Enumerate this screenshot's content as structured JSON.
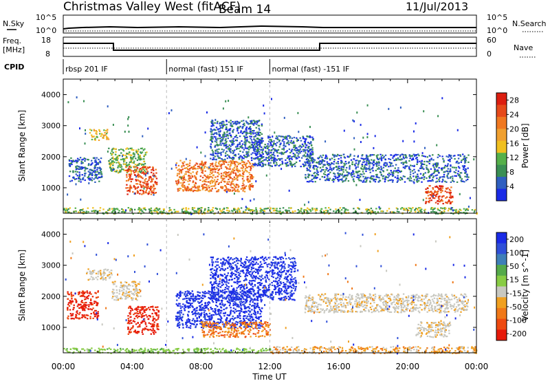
{
  "header": {
    "title": "Christmas Valley West (fitACF)",
    "beam": "Beam 14",
    "date": "11/Jul/2013"
  },
  "info_panels": {
    "nsky_label": "N.Sky",
    "nsky_ticks": [
      "10^5",
      "10^0"
    ],
    "nsky_right_ticks": [
      "10^5",
      "10^0"
    ],
    "nsearch_label": "N.Search",
    "freq_label_line1": "Freq.",
    "freq_label_line2": "[MHz]",
    "freq_ticks": [
      "18",
      "8"
    ],
    "freq_right_ticks": [
      "60",
      "0"
    ],
    "nave_label": "Nave",
    "cpid_label": "CPID",
    "cpid_segments": [
      {
        "label": "rbsp 201 IF",
        "start_hour": 0
      },
      {
        "label": "normal (fast) 151 IF",
        "start_hour": 6
      },
      {
        "label": "normal (fast) -151 IF",
        "start_hour": 12
      }
    ]
  },
  "colors": {
    "power": [
      "#1a2be6",
      "#2f5fc0",
      "#3a8f54",
      "#55b04a",
      "#f0c020",
      "#f0a030",
      "#f07820",
      "#e64a1a",
      "#dc1e10"
    ],
    "velocity_pos": [
      "#1a2be6",
      "#2f4fd8",
      "#3f7fb8",
      "#55aa4a",
      "#88cc44"
    ],
    "velocity_neg": [
      "#c8c8c0",
      "#f0a020",
      "#f07818",
      "#ee4a10",
      "#e61a0a"
    ]
  },
  "chart_data": [
    {
      "type": "heatmap",
      "title": "",
      "xlabel": "",
      "ylabel": "Slant Range [km]",
      "x_ticks": [
        "00:00",
        "04:00",
        "08:00",
        "12:00",
        "16:00",
        "20:00",
        "00:00"
      ],
      "y_ticks": [
        "1000",
        "2000",
        "3000",
        "4000"
      ],
      "xlim_hours": [
        0,
        24
      ],
      "ylim_km": [
        180,
        4500
      ],
      "colorbar_label": "Power [dB]",
      "colorbar_ticks": [
        "4",
        "8",
        "12",
        "16",
        "20",
        "24",
        "28"
      ],
      "colorbar_range": [
        0,
        30
      ],
      "regions": [
        {
          "h0": 0.3,
          "h1": 2.2,
          "r0": 1200,
          "r1": 2000,
          "level": 1
        },
        {
          "h0": 1.5,
          "h1": 2.6,
          "r0": 2550,
          "r1": 2900,
          "level": 4
        },
        {
          "h0": 2.6,
          "h1": 4.8,
          "r0": 1500,
          "r1": 2300,
          "level": 3
        },
        {
          "h0": 3.6,
          "h1": 5.4,
          "r0": 800,
          "r1": 1700,
          "level": 7
        },
        {
          "h0": 6.5,
          "h1": 11.0,
          "r0": 900,
          "r1": 1900,
          "level": 6
        },
        {
          "h0": 8.5,
          "h1": 11.5,
          "r0": 1900,
          "r1": 3200,
          "level": 1
        },
        {
          "h0": 11.0,
          "h1": 14.5,
          "r0": 1700,
          "r1": 2700,
          "level": 1
        },
        {
          "h0": 14.0,
          "h1": 23.5,
          "r0": 1200,
          "r1": 2100,
          "level": 1
        },
        {
          "h0": 21.0,
          "h1": 22.6,
          "r0": 500,
          "r1": 1100,
          "level": 7
        },
        {
          "h0": 0.0,
          "h1": 24.0,
          "r0": 180,
          "r1": 380,
          "level": 3
        }
      ]
    },
    {
      "type": "heatmap",
      "title": "",
      "xlabel": "Time UT",
      "ylabel": "Slant Range [km]",
      "x_ticks": [
        "00:00",
        "04:00",
        "08:00",
        "12:00",
        "16:00",
        "20:00",
        "00:00"
      ],
      "y_ticks": [
        "1000",
        "2000",
        "3000",
        "4000"
      ],
      "xlim_hours": [
        0,
        24
      ],
      "ylim_km": [
        180,
        4500
      ],
      "colorbar_label": "Velocity [m s^-1]",
      "colorbar_ticks": [
        "200",
        "100",
        "50",
        "15",
        "-15",
        "-50",
        "-100",
        "-200"
      ],
      "colorbar_range": [
        -250,
        250
      ],
      "regions": [
        {
          "h0": 0.2,
          "h1": 2.0,
          "r0": 1300,
          "r1": 2200,
          "color": "neg4"
        },
        {
          "h0": 1.3,
          "h1": 2.8,
          "r0": 2550,
          "r1": 2900,
          "color": "neg0"
        },
        {
          "h0": 2.8,
          "h1": 4.5,
          "r0": 1900,
          "r1": 2500,
          "color": "neg0"
        },
        {
          "h0": 3.7,
          "h1": 5.5,
          "r0": 800,
          "r1": 1700,
          "color": "neg4"
        },
        {
          "h0": 6.5,
          "h1": 11.5,
          "r0": 1000,
          "r1": 2200,
          "color": "pos0"
        },
        {
          "h0": 8.0,
          "h1": 12.0,
          "r0": 700,
          "r1": 1200,
          "color": "neg2"
        },
        {
          "h0": 8.5,
          "h1": 13.5,
          "r0": 1900,
          "r1": 3300,
          "color": "pos0"
        },
        {
          "h0": 14.0,
          "h1": 23.5,
          "r0": 1500,
          "r1": 2100,
          "color": "neg0"
        },
        {
          "h0": 20.5,
          "h1": 22.5,
          "r0": 700,
          "r1": 1200,
          "color": "neg0"
        },
        {
          "h0": 0.0,
          "h1": 12.0,
          "r0": 180,
          "r1": 350,
          "color": "pos4"
        },
        {
          "h0": 12.0,
          "h1": 24.0,
          "r0": 180,
          "r1": 400,
          "color": "neg1"
        }
      ]
    }
  ]
}
